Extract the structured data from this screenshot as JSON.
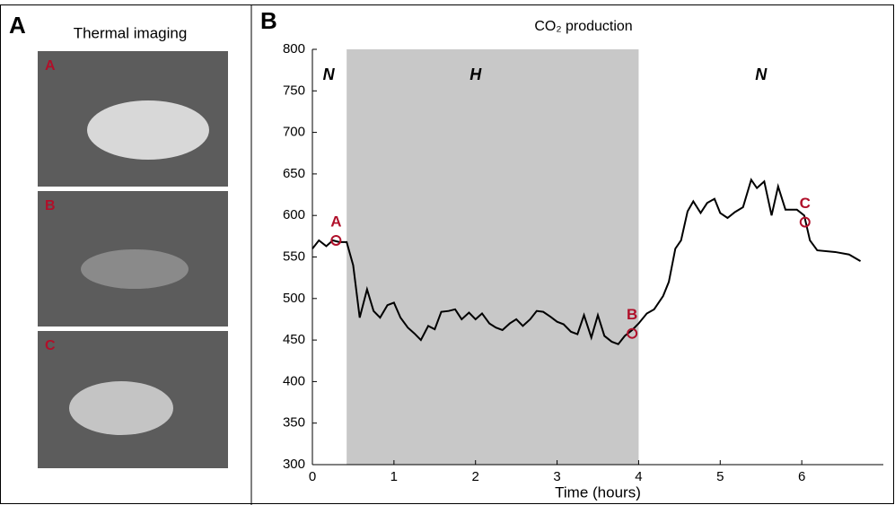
{
  "panel_a": {
    "label": "A",
    "title": "Thermal imaging",
    "images": [
      "A",
      "B",
      "C"
    ]
  },
  "chart_data": {
    "type": "line",
    "panel_label": "B",
    "title": "CO₂ production",
    "xlabel": "Time (hours)",
    "xlim": [
      0,
      7
    ],
    "xticks": [
      0,
      1,
      2,
      3,
      4,
      5,
      6
    ],
    "ylim": [
      300,
      800
    ],
    "yticks": [
      300,
      350,
      400,
      450,
      500,
      550,
      600,
      650,
      700,
      750,
      800
    ],
    "grid": false,
    "shaded": [
      0.42,
      4.0
    ],
    "shade_color": "#c8c8c8",
    "phases": [
      {
        "label": "N",
        "x": 0.2
      },
      {
        "label": "H",
        "x": 2.0
      },
      {
        "label": "N",
        "x": 5.5
      }
    ],
    "x": [
      0,
      0.08,
      0.17,
      0.25,
      0.33,
      0.42,
      0.5,
      0.58,
      0.67,
      0.75,
      0.83,
      0.92,
      1.0,
      1.08,
      1.17,
      1.25,
      1.33,
      1.42,
      1.5,
      1.58,
      1.67,
      1.75,
      1.83,
      1.92,
      2.0,
      2.08,
      2.17,
      2.25,
      2.33,
      2.42,
      2.5,
      2.58,
      2.67,
      2.75,
      2.83,
      2.92,
      3.0,
      3.08,
      3.17,
      3.25,
      3.33,
      3.42,
      3.5,
      3.58,
      3.67,
      3.75,
      3.83,
      3.92,
      4.0,
      4.1,
      4.19,
      4.3,
      4.37,
      4.45,
      4.52,
      4.6,
      4.67,
      4.76,
      4.84,
      4.93,
      5.0,
      5.09,
      5.18,
      5.28,
      5.38,
      5.45,
      5.54,
      5.63,
      5.71,
      5.8,
      5.94,
      6.03,
      6.1,
      6.19,
      6.41,
      6.58,
      6.72
    ],
    "series": [
      {
        "color": "#000000",
        "values": [
          560,
          570,
          563,
          570,
          568,
          568,
          540,
          477,
          511,
          485,
          477,
          492,
          495,
          477,
          465,
          458,
          450,
          467,
          463,
          484,
          485,
          487,
          475,
          483,
          475,
          482,
          470,
          465,
          462,
          470,
          475,
          467,
          475,
          485,
          484,
          478,
          472,
          469,
          460,
          457,
          480,
          453,
          480,
          455,
          448,
          445,
          455,
          462,
          470,
          482,
          487,
          503,
          520,
          560,
          570,
          605,
          617,
          603,
          615,
          620,
          603,
          597,
          604,
          610,
          643,
          633,
          641,
          600,
          635,
          607,
          607,
          600,
          570,
          558,
          556,
          553,
          545
        ]
      }
    ],
    "markers": [
      {
        "label": "A",
        "x": 0.29,
        "y": 570,
        "color": "#b0102a"
      },
      {
        "label": "B",
        "x": 3.92,
        "y": 458,
        "color": "#b0102a"
      },
      {
        "label": "C",
        "x": 6.04,
        "y": 592,
        "color": "#b0102a"
      }
    ]
  }
}
